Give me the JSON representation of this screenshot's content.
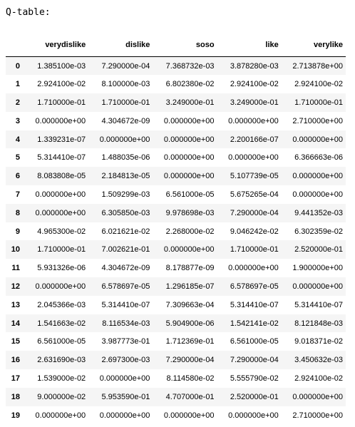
{
  "output": {
    "label": "Q-table:"
  },
  "table": {
    "columns": [
      "verydislike",
      "dislike",
      "soso",
      "like",
      "verylike"
    ],
    "rows": [
      {
        "index": "0",
        "cells": [
          "1.385100e-03",
          "7.290000e-04",
          "7.368732e-03",
          "3.878280e-03",
          "2.713878e+00"
        ]
      },
      {
        "index": "1",
        "cells": [
          "2.924100e-02",
          "8.100000e-03",
          "6.802380e-02",
          "2.924100e-02",
          "2.924100e-02"
        ]
      },
      {
        "index": "2",
        "cells": [
          "1.710000e-01",
          "1.710000e-01",
          "3.249000e-01",
          "3.249000e-01",
          "1.710000e-01"
        ]
      },
      {
        "index": "3",
        "cells": [
          "0.000000e+00",
          "4.304672e-09",
          "0.000000e+00",
          "0.000000e+00",
          "2.710000e+00"
        ]
      },
      {
        "index": "4",
        "cells": [
          "1.339231e-07",
          "0.000000e+00",
          "0.000000e+00",
          "2.200166e-07",
          "0.000000e+00"
        ]
      },
      {
        "index": "5",
        "cells": [
          "5.314410e-07",
          "1.488035e-06",
          "0.000000e+00",
          "0.000000e+00",
          "6.366663e-06"
        ]
      },
      {
        "index": "6",
        "cells": [
          "8.083808e-05",
          "2.184813e-05",
          "0.000000e+00",
          "5.107739e-05",
          "0.000000e+00"
        ]
      },
      {
        "index": "7",
        "cells": [
          "0.000000e+00",
          "1.509299e-03",
          "6.561000e-05",
          "5.675265e-04",
          "0.000000e+00"
        ]
      },
      {
        "index": "8",
        "cells": [
          "0.000000e+00",
          "6.305850e-03",
          "9.978698e-03",
          "7.290000e-04",
          "9.441352e-03"
        ]
      },
      {
        "index": "9",
        "cells": [
          "4.965300e-02",
          "6.021621e-02",
          "2.268000e-02",
          "9.046242e-02",
          "6.302359e-02"
        ]
      },
      {
        "index": "10",
        "cells": [
          "1.710000e-01",
          "7.002621e-01",
          "0.000000e+00",
          "1.710000e-01",
          "2.520000e-01"
        ]
      },
      {
        "index": "11",
        "cells": [
          "5.931326e-06",
          "4.304672e-09",
          "8.178877e-09",
          "0.000000e+00",
          "1.900000e+00"
        ]
      },
      {
        "index": "12",
        "cells": [
          "0.000000e+00",
          "6.578697e-05",
          "1.296185e-07",
          "6.578697e-05",
          "0.000000e+00"
        ]
      },
      {
        "index": "13",
        "cells": [
          "2.045366e-03",
          "5.314410e-07",
          "7.309663e-04",
          "5.314410e-07",
          "5.314410e-07"
        ]
      },
      {
        "index": "14",
        "cells": [
          "1.541663e-02",
          "8.116534e-03",
          "5.904900e-06",
          "1.542141e-02",
          "8.121848e-03"
        ]
      },
      {
        "index": "15",
        "cells": [
          "6.561000e-05",
          "3.987773e-01",
          "1.712369e-01",
          "6.561000e-05",
          "9.018371e-02"
        ]
      },
      {
        "index": "16",
        "cells": [
          "2.631690e-03",
          "2.697300e-03",
          "7.290000e-04",
          "7.290000e-04",
          "3.450632e-03"
        ]
      },
      {
        "index": "17",
        "cells": [
          "1.539000e-02",
          "0.000000e+00",
          "8.114580e-02",
          "5.555790e-02",
          "2.924100e-02"
        ]
      },
      {
        "index": "18",
        "cells": [
          "9.000000e-02",
          "5.953590e-01",
          "4.707000e-01",
          "2.520000e-01",
          "0.000000e+00"
        ]
      },
      {
        "index": "19",
        "cells": [
          "0.000000e+00",
          "0.000000e+00",
          "0.000000e+00",
          "0.000000e+00",
          "2.710000e+00"
        ]
      }
    ]
  }
}
